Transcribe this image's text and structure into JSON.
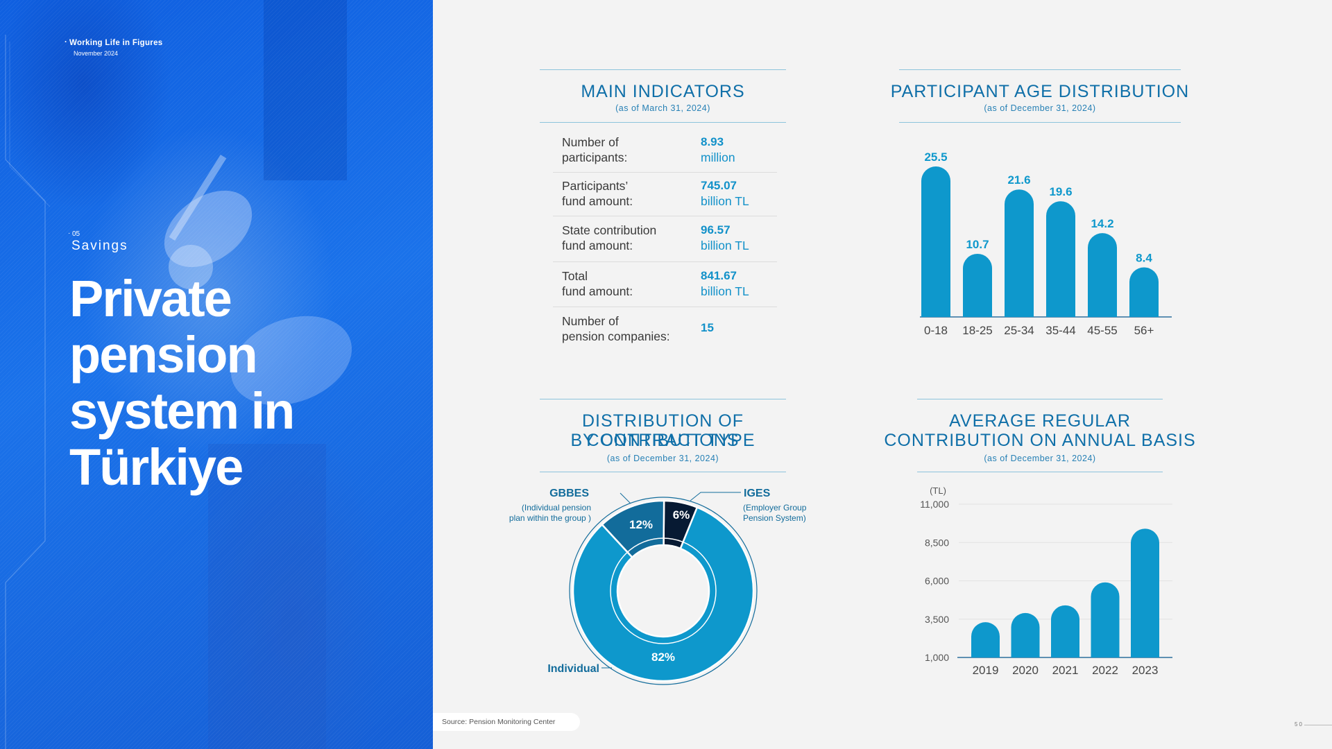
{
  "hero": {
    "kicker": "Working Life in Figures",
    "date": "November 2024",
    "section_number": "05",
    "section_name": "Savings",
    "title": "Private pension system in Türkiye"
  },
  "main_indicators": {
    "title": "MAIN INDICATORS",
    "subtitle": "(as of March 31, 2024)",
    "rows": [
      {
        "label": "Number of\nparticipants:",
        "value": "8.93",
        "unit": "million"
      },
      {
        "label": "Participants’\nfund amount:",
        "value": "745.07",
        "unit": "billion TL"
      },
      {
        "label": "State contribution\nfund amount:",
        "value": "96.57",
        "unit": "billion TL"
      },
      {
        "label": "Total\nfund amount:",
        "value": "841.67",
        "unit": "billion TL"
      },
      {
        "label": "Number of\npension companies:",
        "value": "15",
        "unit": ""
      }
    ]
  },
  "age_chart": {
    "title": "PARTICIPANT AGE DISTRIBUTION",
    "subtitle": "(as of December 31, 2024)"
  },
  "contrib_chart": {
    "title_line1": "DISTRIBUTION OF CONTRIBUTIONS",
    "title_line2": "BY CONTRACT TYPE",
    "subtitle": "(as of December 31, 2024)"
  },
  "annual_chart": {
    "title_line1": "AVERAGE REGULAR",
    "title_line2": "CONTRIBUTION ON ANNUAL BASIS",
    "subtitle": "(as of December 31, 2024)"
  },
  "footer": {
    "source": "Source: Pension Monitoring Center",
    "page": "50"
  },
  "colors": {
    "primary": "#0e98cc",
    "dark_blue": "#126c9b",
    "navy": "#071a33",
    "hero_blue": "#1668e3"
  },
  "chart_data": [
    {
      "type": "bar",
      "title": "PARTICIPANT AGE DISTRIBUTION",
      "categories": [
        "0-18",
        "18-25",
        "25-34",
        "35-44",
        "45-55",
        "56+"
      ],
      "values": [
        25.5,
        10.7,
        21.6,
        19.6,
        14.2,
        8.4
      ],
      "value_labels": [
        "25.5",
        "10.7",
        "21.6",
        "19.6",
        "14.2",
        "8.4"
      ],
      "ylim": [
        0,
        25.5
      ],
      "grid": false
    },
    {
      "type": "pie",
      "title": "DISTRIBUTION OF CONTRIBUTIONS BY CONTRACT TYPE",
      "slices": [
        {
          "label": "Individual",
          "value": 82,
          "display": "82%",
          "note": ""
        },
        {
          "label": "GBBES",
          "value": 12,
          "display": "12%",
          "note_line1": "(Individual pension",
          "note_line2": "plan within the group )"
        },
        {
          "label": "IGES",
          "value": 6,
          "display": "6%",
          "note_line1": "(Employer Group",
          "note_line2": "Pension System)"
        }
      ]
    },
    {
      "type": "bar",
      "title": "AVERAGE REGULAR CONTRIBUTION ON ANNUAL BASIS",
      "ylabel": "(TL)",
      "categories": [
        "2019",
        "2020",
        "2021",
        "2022",
        "2023"
      ],
      "values": [
        3300,
        3900,
        4400,
        5900,
        9400
      ],
      "yticks": [
        1000,
        3500,
        6000,
        8500,
        11000
      ],
      "ytick_labels": [
        "1,000",
        "3,500",
        "6,000",
        "8,500",
        "11,000"
      ],
      "ylim": [
        1000,
        11000
      ],
      "grid": true
    }
  ]
}
